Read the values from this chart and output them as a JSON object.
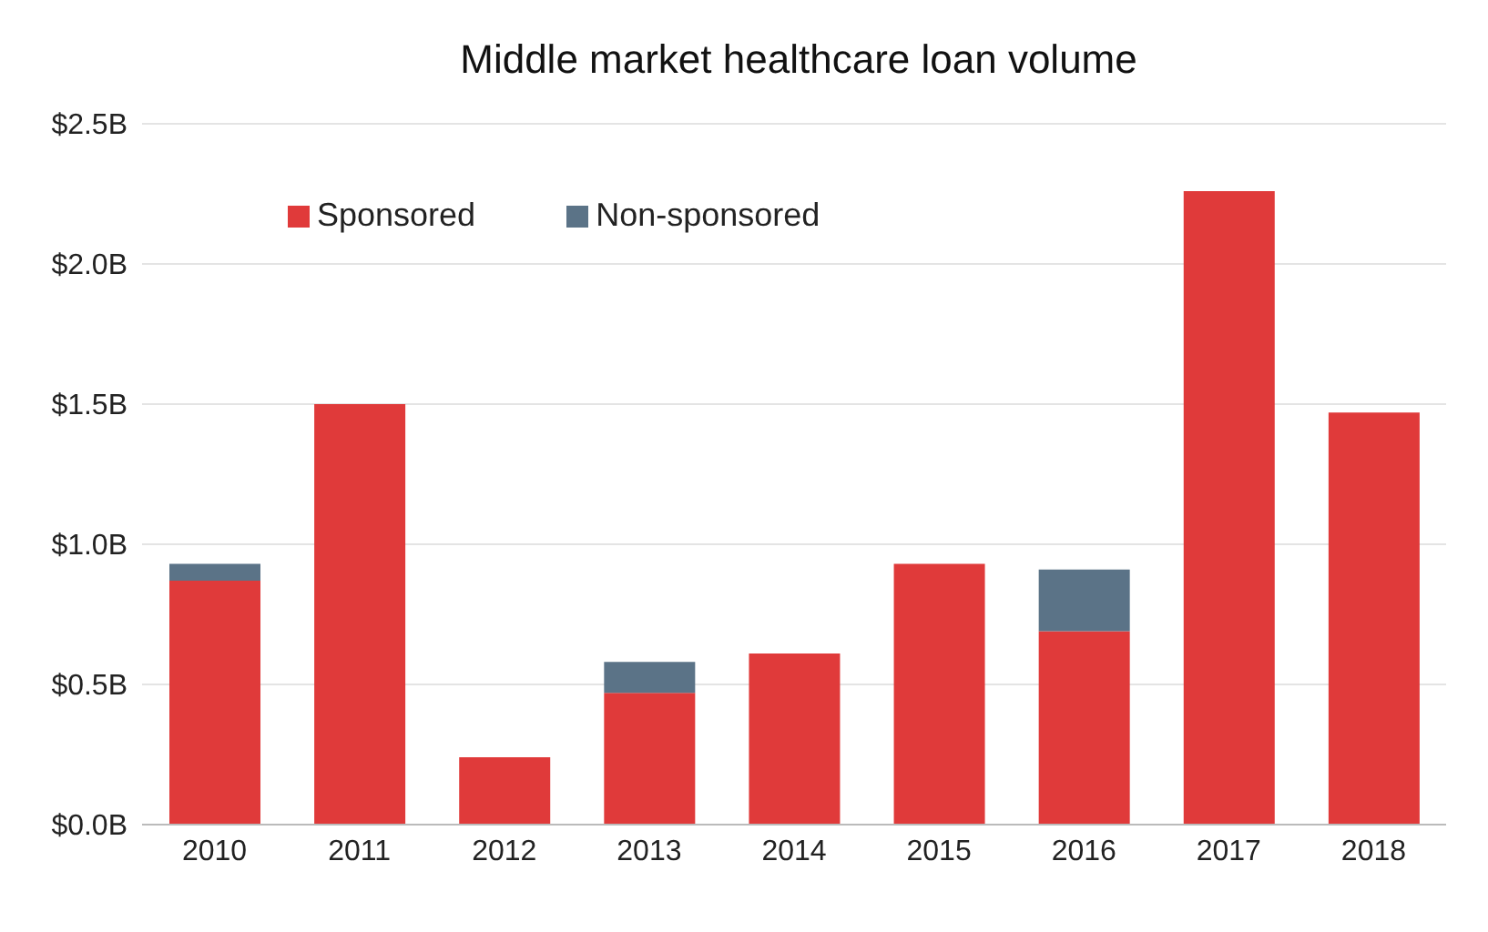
{
  "chart_data": {
    "type": "bar",
    "title": "Middle market healthcare loan volume",
    "categories": [
      "2010",
      "2011",
      "2012",
      "2013",
      "2014",
      "2015",
      "2016",
      "2017",
      "2018"
    ],
    "stacked": true,
    "series": [
      {
        "name": "Sponsored",
        "color": "#e03a3a",
        "values": [
          0.87,
          1.5,
          0.24,
          0.47,
          0.61,
          0.93,
          0.69,
          2.26,
          1.47
        ]
      },
      {
        "name": "Non-sponsored",
        "color": "#5b7387",
        "values": [
          0.06,
          null,
          null,
          0.11,
          null,
          null,
          0.22,
          null,
          null
        ]
      }
    ],
    "ylim": [
      0,
      2.5
    ],
    "yticks": [
      {
        "value": 0,
        "label": "$0.0B"
      },
      {
        "value": 0.5,
        "label": "$0.5B"
      },
      {
        "value": 1,
        "label": "$1.0B"
      },
      {
        "value": 1.5,
        "label": "$1.5B"
      },
      {
        "value": 2,
        "label": "$2.0B"
      },
      {
        "value": 2.5,
        "label": "$2.5B"
      }
    ],
    "grid": "y",
    "legend": "top left"
  }
}
